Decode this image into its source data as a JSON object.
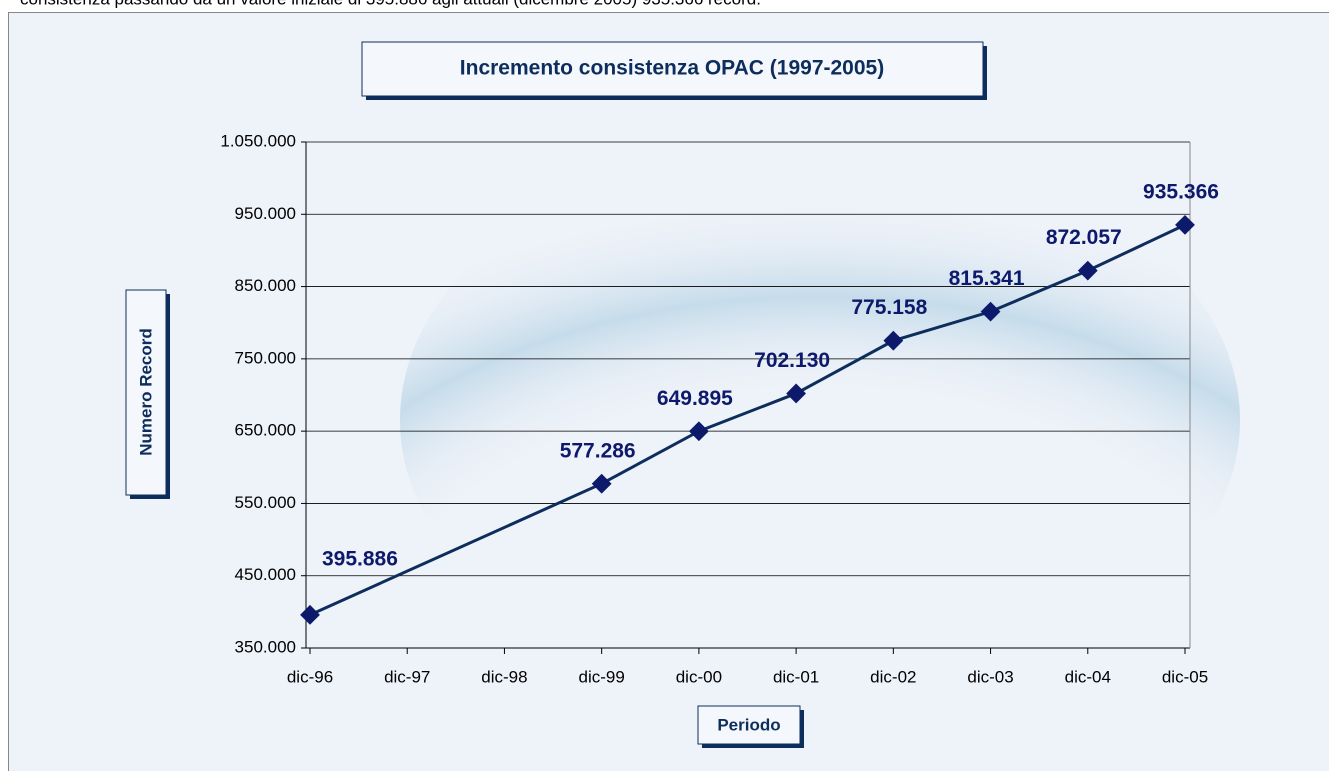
{
  "page_text": "consistenza passando da un valore iniziale di 395.886 agli attuali (dicembre 2005) 935.366 record.",
  "chart_data": {
    "type": "line",
    "title": "Incremento consistenza OPAC (1997-2005)",
    "x_label": "Periodo",
    "y_label": "Numero Record",
    "categories": [
      "dic-96",
      "dic-97",
      "dic-98",
      "dic-99",
      "dic-00",
      "dic-01",
      "dic-02",
      "dic-03",
      "dic-04",
      "dic-05"
    ],
    "series": [
      {
        "name": "Numero Record",
        "color": "#0d2e5c",
        "x": [
          "dic-96",
          "dic-99",
          "dic-00",
          "dic-01",
          "dic-02",
          "dic-03",
          "dic-04",
          "dic-05"
        ],
        "values": [
          395886,
          577286,
          649895,
          702130,
          775158,
          815341,
          872057,
          935366
        ],
        "value_labels": [
          "395.886",
          "577.286",
          "649.895",
          "702.130",
          "775.158",
          "815.341",
          "872.057",
          "935.366"
        ]
      }
    ],
    "ylim": [
      350000,
      1050000
    ],
    "yticks": [
      {
        "value": 350000,
        "label": "350.000"
      },
      {
        "value": 450000,
        "label": "450.000"
      },
      {
        "value": 550000,
        "label": "550.000"
      },
      {
        "value": 650000,
        "label": "650.000"
      },
      {
        "value": 750000,
        "label": "750.000"
      },
      {
        "value": 850000,
        "label": "850.000"
      },
      {
        "value": 950000,
        "label": "950.000"
      },
      {
        "value": 1050000,
        "label": "1.050.000"
      }
    ],
    "grid": true
  }
}
